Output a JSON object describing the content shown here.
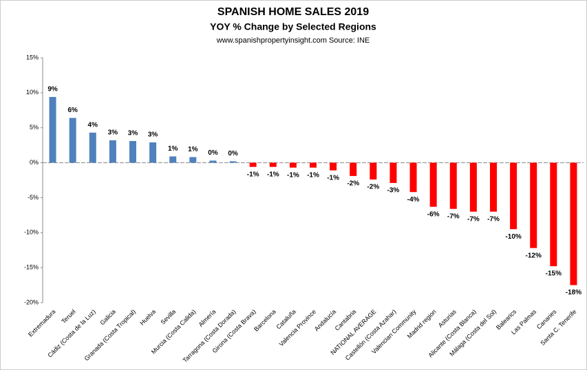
{
  "chart_data": {
    "type": "bar",
    "title": "SPANISH HOME SALES 2019",
    "subtitle": "YOY % Change by Selected Regions",
    "source": "www.spanishpropertyinsight.com Source: INE",
    "categories": [
      "Extremadura",
      "Teruel",
      "Cádiz (Costa de la Luz)",
      "Galicia",
      "Granada (Costa Tropical)",
      "Huelva",
      "Sevilla",
      "Murcia (Costa Calida)",
      "Almería",
      "Tarragona (Costa Dorada)",
      "Girona (Costa Brava)",
      "Barcelona",
      "Cataluña",
      "Valencia Province",
      "Andalucía",
      "Cantabria",
      "NATIONAL AVERAGE",
      "Castellón (Costa Azahar)",
      "Valencian Community",
      "Madrid region",
      "Asturias",
      "Alicante (Costa Blanca)",
      "Málaga (Costa del Sol)",
      "Balearics",
      "Las Palmas",
      "Canaries",
      "Santa C. Tenerife"
    ],
    "values": [
      9.4,
      6.4,
      4.3,
      3.2,
      3.1,
      2.9,
      0.9,
      0.8,
      0.3,
      0.2,
      -0.6,
      -0.6,
      -0.7,
      -0.7,
      -1.1,
      -1.9,
      -2.4,
      -2.9,
      -4.2,
      -6.3,
      -6.6,
      -7.0,
      -7.0,
      -9.5,
      -12.2,
      -14.8,
      -17.5
    ],
    "value_labels": [
      "9%",
      "6%",
      "4%",
      "3%",
      "3%",
      "3%",
      "1%",
      "1%",
      "0%",
      "0%",
      "-1%",
      "-1%",
      "-1%",
      "-1%",
      "-1%",
      "-2%",
      "-2%",
      "-3%",
      "-4%",
      "-6%",
      "-7%",
      "-7%",
      "-7%",
      "-10%",
      "-12%",
      "-15%",
      "-18%"
    ],
    "positive_color": "#4f81bd",
    "negative_color": "#ff0000",
    "ylim": [
      -20,
      15
    ],
    "yticks": [
      {
        "value": -20,
        "label": "-20%"
      },
      {
        "value": -15,
        "label": "-15%"
      },
      {
        "value": -10,
        "label": "-10%"
      },
      {
        "value": -5,
        "label": "-5%"
      },
      {
        "value": 0,
        "label": "0%"
      },
      {
        "value": 5,
        "label": "5%"
      },
      {
        "value": 10,
        "label": "10%"
      },
      {
        "value": 15,
        "label": "15%"
      }
    ],
    "grid": false
  }
}
